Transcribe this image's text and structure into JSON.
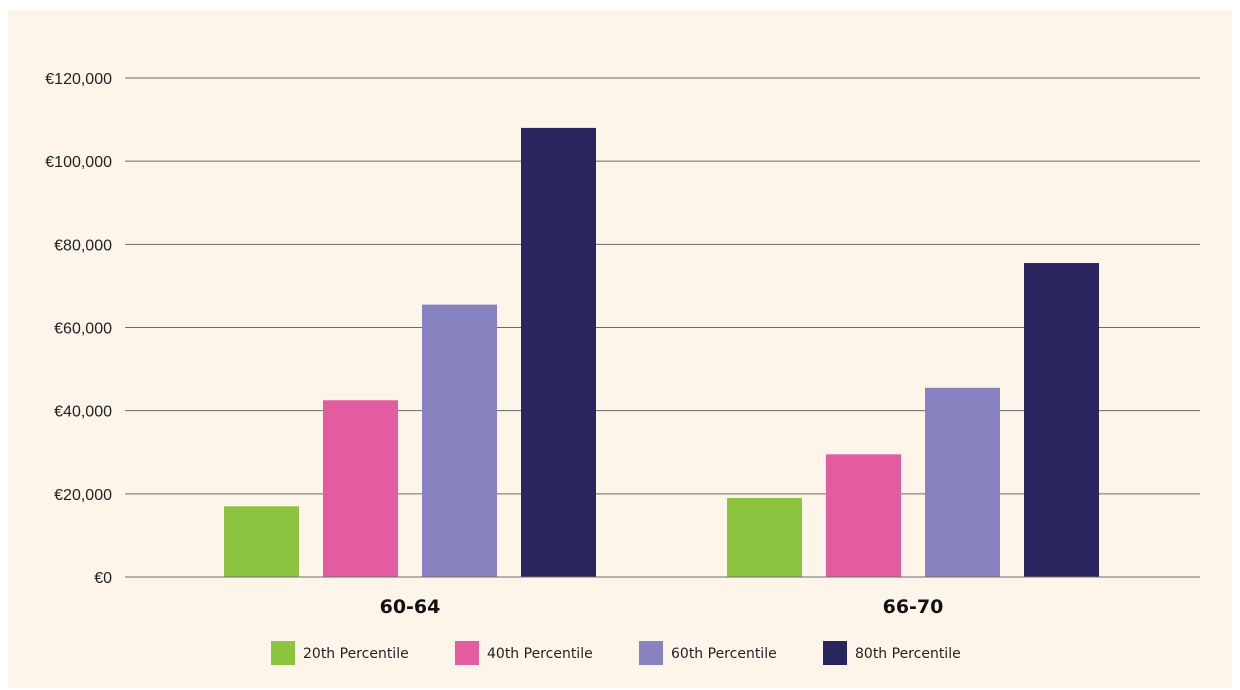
{
  "chart_data": {
    "type": "bar",
    "title": "",
    "xlabel": "",
    "ylabel": "",
    "categories": [
      "60-64",
      "66-70"
    ],
    "series": [
      {
        "name": "20th Percentile",
        "color": "#8cc43f",
        "values": [
          17000,
          19000
        ]
      },
      {
        "name": "40th Percentile",
        "color": "#e35c9f",
        "values": [
          42500,
          29500
        ]
      },
      {
        "name": "60th Percentile",
        "color": "#8883c0",
        "values": [
          65500,
          45500
        ]
      },
      {
        "name": "80th Percentile",
        "color": "#29255f",
        "values": [
          108000,
          75500
        ]
      }
    ],
    "ylim": [
      0,
      120000
    ],
    "yticks": [
      0,
      20000,
      40000,
      60000,
      80000,
      100000,
      120000
    ],
    "ytick_labels": [
      "€0",
      "€20,000",
      "€40,000",
      "€60,000",
      "€80,000",
      "€100,000",
      "€120,000"
    ],
    "grid": true,
    "legend_position": "bottom"
  }
}
